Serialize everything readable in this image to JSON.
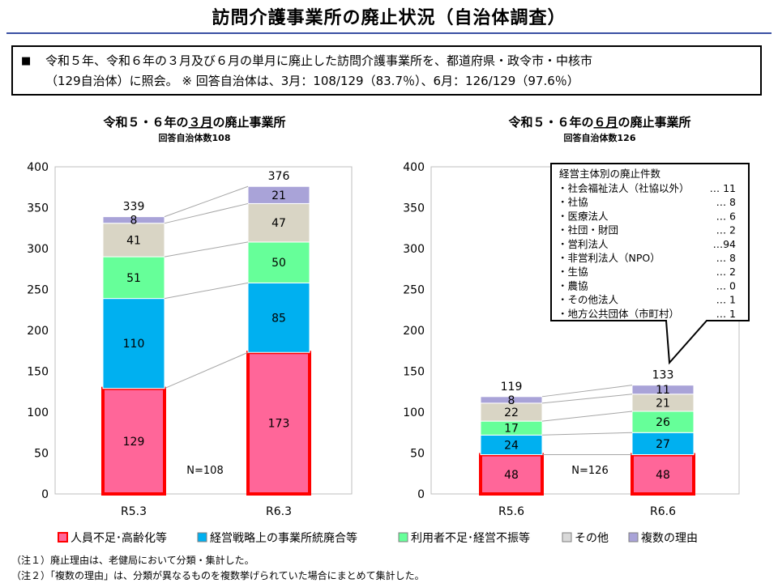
{
  "header": {
    "title": "訪問介護事業所の廃止状況（自治体調査）"
  },
  "intro": {
    "bullet": "■",
    "line1": "令和５年、令和６年の３月及び６月の単月に廃止した訪問介護事業所を、都道府県・政令市・中核市",
    "line2": "（129自治体）に照会。 ※ 回答自治体は、3月：108/129（83.7％）、6月：126/129（97.6％）"
  },
  "colors": {
    "staff": "#ff6699",
    "staff_border": "#ff0000",
    "strategy": "#00b0f0",
    "users": "#66ff99",
    "other": "#d9d5c5",
    "multiple": "#a9a3d8"
  },
  "legend": [
    {
      "key": "staff",
      "label": "人員不足･高齢化等",
      "color": "#ff6699"
    },
    {
      "key": "strategy",
      "label": "経営戦略上の事業所統廃合等",
      "color": "#00b0f0"
    },
    {
      "key": "users",
      "label": "利用者不足･経営不振等",
      "color": "#66ff99"
    },
    {
      "key": "other",
      "label": "その他",
      "color": "#d9d9d9"
    },
    {
      "key": "multiple",
      "label": "複数の理由",
      "color": "#a9a3d8"
    }
  ],
  "chart_data": [
    {
      "type": "bar",
      "stacked": true,
      "title": "令和５・６年の３月の廃止事業所",
      "title_parts": [
        "令和５・６年の",
        "３月",
        "の廃止事業所"
      ],
      "subtitle": "回答自治体数108",
      "categories": [
        "R5.3",
        "R6.3"
      ],
      "totals": [
        "339",
        "376"
      ],
      "ylim": [
        0,
        400
      ],
      "yticks": [
        0,
        50,
        100,
        150,
        200,
        250,
        300,
        350,
        400
      ],
      "annotation": "N=108",
      "series": [
        {
          "key": "staff",
          "name": "人員不足･高齢化等",
          "values": [
            129,
            173
          ]
        },
        {
          "key": "strategy",
          "name": "経営戦略上の事業所統廃合等",
          "values": [
            110,
            85
          ]
        },
        {
          "key": "users",
          "name": "利用者不足･経営不振等",
          "values": [
            51,
            50
          ]
        },
        {
          "key": "other",
          "name": "その他",
          "values": [
            41,
            47
          ]
        },
        {
          "key": "multiple",
          "name": "複数の理由",
          "values": [
            8,
            21
          ]
        }
      ]
    },
    {
      "type": "bar",
      "stacked": true,
      "title": "令和５・６年の６月の廃止事業所",
      "title_parts": [
        "令和５・６年の",
        "６月",
        "の廃止事業所"
      ],
      "subtitle": "回答自治体数126",
      "categories": [
        "R5.6",
        "R6.6"
      ],
      "totals": [
        "119",
        "133"
      ],
      "ylim": [
        0,
        400
      ],
      "yticks": [
        0,
        50,
        100,
        150,
        200,
        250,
        300,
        350,
        400
      ],
      "annotation": "N=126",
      "series": [
        {
          "key": "staff",
          "name": "人員不足･高齢化等",
          "values": [
            48,
            48
          ]
        },
        {
          "key": "strategy",
          "name": "経営戦略上の事業所統廃合等",
          "values": [
            24,
            27
          ]
        },
        {
          "key": "users",
          "name": "利用者不足･経営不振等",
          "values": [
            17,
            26
          ]
        },
        {
          "key": "other",
          "name": "その他",
          "values": [
            22,
            21
          ]
        },
        {
          "key": "multiple",
          "name": "複数の理由",
          "values": [
            8,
            11
          ]
        }
      ]
    }
  ],
  "callout": {
    "title": "経営主体別の廃止件数",
    "items": [
      {
        "label": "・社会福祉法人（社協以外）",
        "value": "… 11"
      },
      {
        "label": "・社協",
        "value": "… 8"
      },
      {
        "label": "・医療法人",
        "value": "… 6"
      },
      {
        "label": "・社団・財団",
        "value": "… 2"
      },
      {
        "label": "・営利法人",
        "value": "…94"
      },
      {
        "label": "・非営利法人（NPO）",
        "value": "… 8"
      },
      {
        "label": "・生協",
        "value": "… 2"
      },
      {
        "label": "・農協",
        "value": "… 0"
      },
      {
        "label": "・その他法人",
        "value": "… 1"
      },
      {
        "label": "・地方公共団体（市町村）",
        "value": "… 1"
      }
    ]
  },
  "footnotes": [
    "（注１）廃止理由は、老健局において分類・集計した。",
    "（注２）「複数の理由」は、分類が異なるものを複数挙げられていた場合にまとめて集計した。"
  ]
}
